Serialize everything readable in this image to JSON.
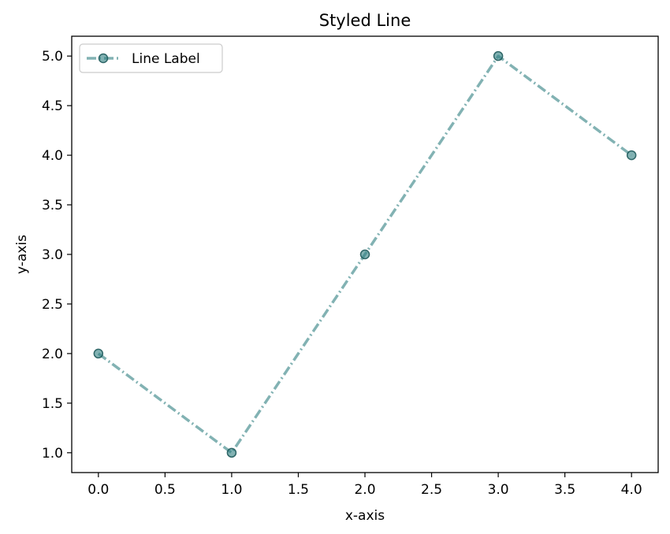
{
  "chart_data": {
    "type": "line",
    "title": "Styled Line",
    "xlabel": "x-axis",
    "ylabel": "y-axis",
    "xlim": [
      -0.2,
      4.2
    ],
    "ylim": [
      0.8,
      5.2
    ],
    "xticks": [
      0.0,
      0.5,
      1.0,
      1.5,
      2.0,
      2.5,
      3.0,
      3.5,
      4.0
    ],
    "xtick_labels": [
      "0.0",
      "0.5",
      "1.0",
      "1.5",
      "2.0",
      "2.5",
      "3.0",
      "3.5",
      "4.0"
    ],
    "yticks": [
      1.0,
      1.5,
      2.0,
      2.5,
      3.0,
      3.5,
      4.0,
      4.5,
      5.0
    ],
    "ytick_labels": [
      "1.0",
      "1.5",
      "2.0",
      "2.5",
      "3.0",
      "3.5",
      "4.0",
      "4.5",
      "5.0"
    ],
    "grid": false,
    "legend_position": "top-left",
    "series": [
      {
        "name": "Line Label",
        "x": [
          0,
          1,
          2,
          3,
          4
        ],
        "y": [
          2,
          1,
          3,
          5,
          4
        ],
        "color": "#2f7f80",
        "line_style": "dash-dot",
        "marker": "circle",
        "alpha": 0.6
      }
    ]
  }
}
